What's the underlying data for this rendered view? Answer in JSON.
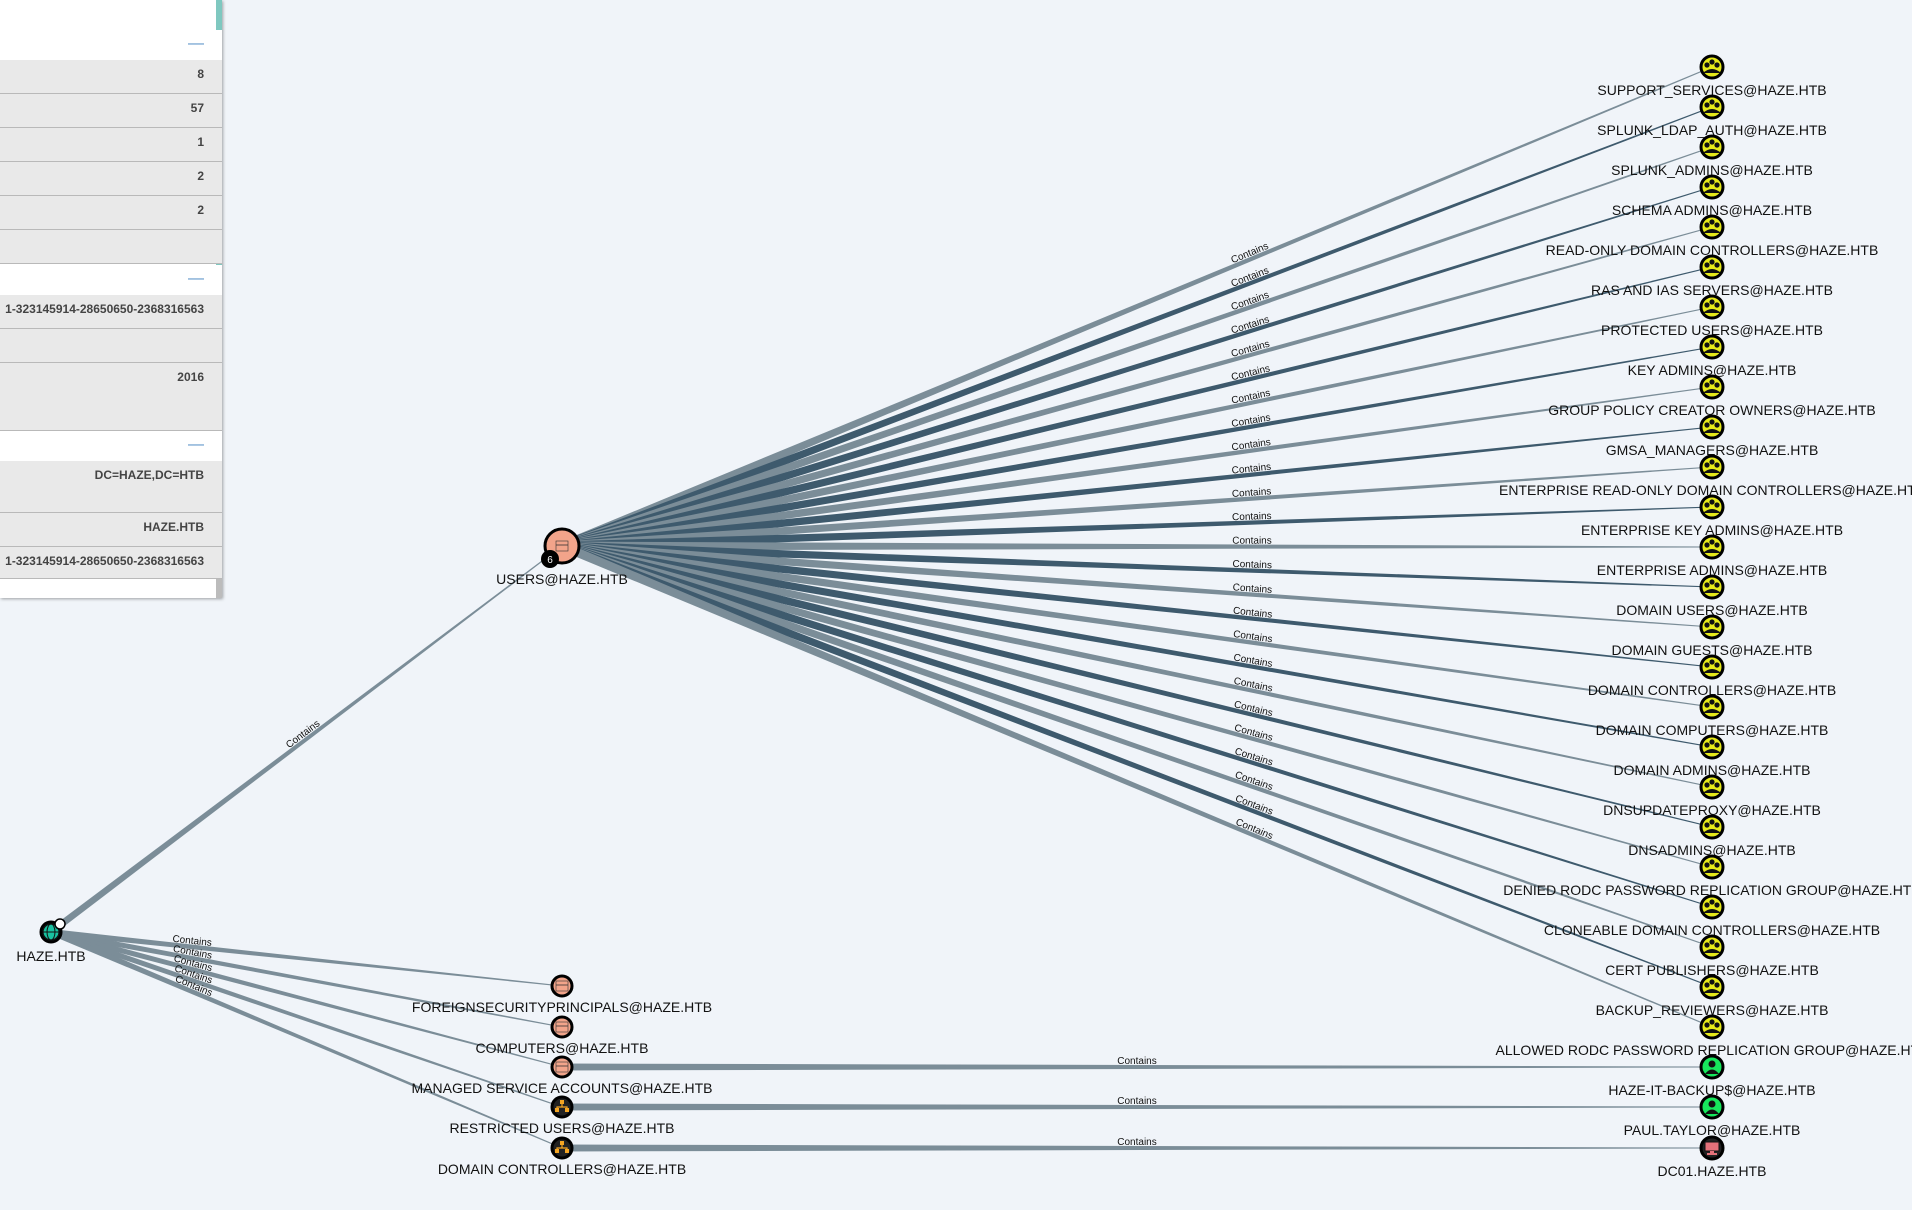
{
  "panel": {
    "sections": [
      {
        "rows": [
          {
            "value": "8"
          },
          {
            "value": "57"
          },
          {
            "value": "1"
          },
          {
            "value": "2"
          },
          {
            "value": "2"
          },
          {
            "value": ""
          }
        ]
      },
      {
        "rows": [
          {
            "value": "1-323145914-28650650-2368316563"
          },
          {
            "value": ""
          },
          {
            "value": "2016"
          }
        ]
      },
      {
        "rows": [
          {
            "value": "DC=HAZE,DC=HTB"
          },
          {
            "value": "HAZE.HTB"
          },
          {
            "value": "1-323145914-28650650-2368316563"
          }
        ]
      }
    ],
    "collapse_symbol": "—"
  },
  "graph": {
    "edge_label": "Contains",
    "users_badge_count": "6",
    "nodes": {
      "domain": {
        "label": "HAZE.HTB",
        "icon": "globe-icon"
      },
      "users_ou": {
        "label": "USERS@HAZE.HTB",
        "icon": "container-icon"
      },
      "mid": [
        {
          "label": "FOREIGNSECURITYPRINCIPALS@HAZE.HTB",
          "icon": "container-icon"
        },
        {
          "label": "COMPUTERS@HAZE.HTB",
          "icon": "container-icon"
        },
        {
          "label": "MANAGED SERVICE ACCOUNTS@HAZE.HTB",
          "icon": "container-icon"
        },
        {
          "label": "RESTRICTED USERS@HAZE.HTB",
          "icon": "ou-icon"
        },
        {
          "label": "DOMAIN CONTROLLERS@HAZE.HTB",
          "icon": "ou-icon"
        }
      ],
      "groups": [
        {
          "label": "SUPPORT_SERVICES@HAZE.HTB",
          "icon": "group-icon"
        },
        {
          "label": "SPLUNK_LDAP_AUTH@HAZE.HTB",
          "icon": "group-icon"
        },
        {
          "label": "SPLUNK_ADMINS@HAZE.HTB",
          "icon": "group-icon"
        },
        {
          "label": "SCHEMA ADMINS@HAZE.HTB",
          "icon": "group-icon"
        },
        {
          "label": "READ-ONLY DOMAIN CONTROLLERS@HAZE.HTB",
          "icon": "group-icon"
        },
        {
          "label": "RAS AND IAS SERVERS@HAZE.HTB",
          "icon": "group-icon"
        },
        {
          "label": "PROTECTED USERS@HAZE.HTB",
          "icon": "group-icon"
        },
        {
          "label": "KEY ADMINS@HAZE.HTB",
          "icon": "group-icon"
        },
        {
          "label": "GROUP POLICY CREATOR OWNERS@HAZE.HTB",
          "icon": "group-icon"
        },
        {
          "label": "GMSA_MANAGERS@HAZE.HTB",
          "icon": "group-icon"
        },
        {
          "label": "ENTERPRISE READ-ONLY DOMAIN CONTROLLERS@HAZE.HTB",
          "icon": "group-icon"
        },
        {
          "label": "ENTERPRISE KEY ADMINS@HAZE.HTB",
          "icon": "group-icon"
        },
        {
          "label": "ENTERPRISE ADMINS@HAZE.HTB",
          "icon": "group-icon"
        },
        {
          "label": "DOMAIN USERS@HAZE.HTB",
          "icon": "group-icon"
        },
        {
          "label": "DOMAIN GUESTS@HAZE.HTB",
          "icon": "group-icon"
        },
        {
          "label": "DOMAIN CONTROLLERS@HAZE.HTB",
          "icon": "group-icon"
        },
        {
          "label": "DOMAIN COMPUTERS@HAZE.HTB",
          "icon": "group-icon"
        },
        {
          "label": "DOMAIN ADMINS@HAZE.HTB",
          "icon": "group-icon"
        },
        {
          "label": "DNSUPDATEPROXY@HAZE.HTB",
          "icon": "group-icon"
        },
        {
          "label": "DNSADMINS@HAZE.HTB",
          "icon": "group-icon"
        },
        {
          "label": "DENIED RODC PASSWORD REPLICATION GROUP@HAZE.HTB",
          "icon": "group-icon"
        },
        {
          "label": "CLONEABLE DOMAIN CONTROLLERS@HAZE.HTB",
          "icon": "group-icon"
        },
        {
          "label": "CERT PUBLISHERS@HAZE.HTB",
          "icon": "group-icon"
        },
        {
          "label": "BACKUP_REVIEWERS@HAZE.HTB",
          "icon": "group-icon"
        },
        {
          "label": "ALLOWED RODC PASSWORD REPLICATION GROUP@HAZE.HTB",
          "icon": "group-icon"
        }
      ],
      "leaves": [
        {
          "label": "HAZE-IT-BACKUP$@HAZE.HTB",
          "icon": "user-icon"
        },
        {
          "label": "PAUL.TAYLOR@HAZE.HTB",
          "icon": "user-icon"
        },
        {
          "label": "DC01.HAZE.HTB",
          "icon": "computer-icon"
        }
      ]
    },
    "colors": {
      "edge": "#7b8d98",
      "edge_dense": "#3e5a6d",
      "container_fill": "#f2a48a",
      "ou_fill": "#f5a623",
      "group_fill": "#e6e91a",
      "user_fill": "#17e65c",
      "computer_fill": "#e6717a",
      "domain_fill": "#19c2a0"
    }
  }
}
